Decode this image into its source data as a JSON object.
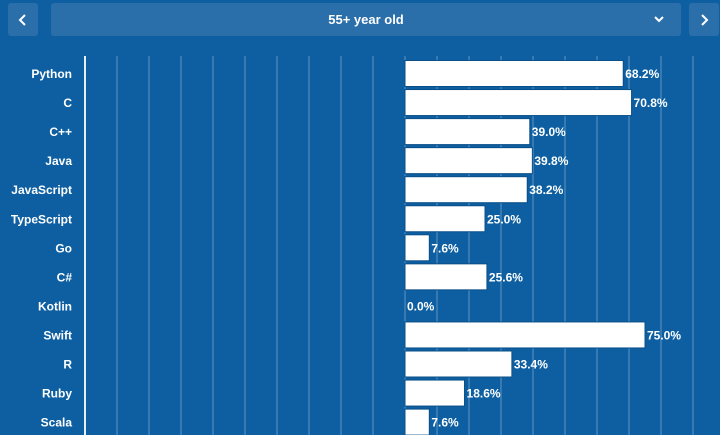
{
  "header": {
    "prev_icon": "chevron-left-icon",
    "next_icon": "chevron-right-icon",
    "dropdown_icon": "chevron-down-icon",
    "selected_group": "55+ year old"
  },
  "colors": {
    "background": "#0d5fa1",
    "control": "#2b6faa",
    "bar_fill": "#ffffff",
    "bar_stroke": "#0a4f88",
    "grid": "#ffffff",
    "text": "#ffffff"
  },
  "chart_data": {
    "type": "bar",
    "orientation": "horizontal",
    "categories": [
      "Python",
      "C",
      "C++",
      "Java",
      "JavaScript",
      "TypeScript",
      "Go",
      "C#",
      "Kotlin",
      "Swift",
      "R",
      "Ruby",
      "Scala"
    ],
    "values": [
      68.2,
      70.8,
      39.0,
      39.8,
      38.2,
      25.0,
      7.6,
      25.6,
      0.0,
      75.0,
      33.4,
      18.6,
      7.6
    ],
    "value_labels": [
      "68.2%",
      "70.8%",
      "39.0%",
      "39.8%",
      "38.2%",
      "25.0%",
      "7.6%",
      "25.6%",
      "0.0%",
      "75.0%",
      "33.4%",
      "18.6%",
      "7.6%"
    ],
    "unit": "%",
    "xlim": [
      -100,
      100
    ],
    "grid": true,
    "title": "",
    "xlabel": "",
    "ylabel": ""
  }
}
